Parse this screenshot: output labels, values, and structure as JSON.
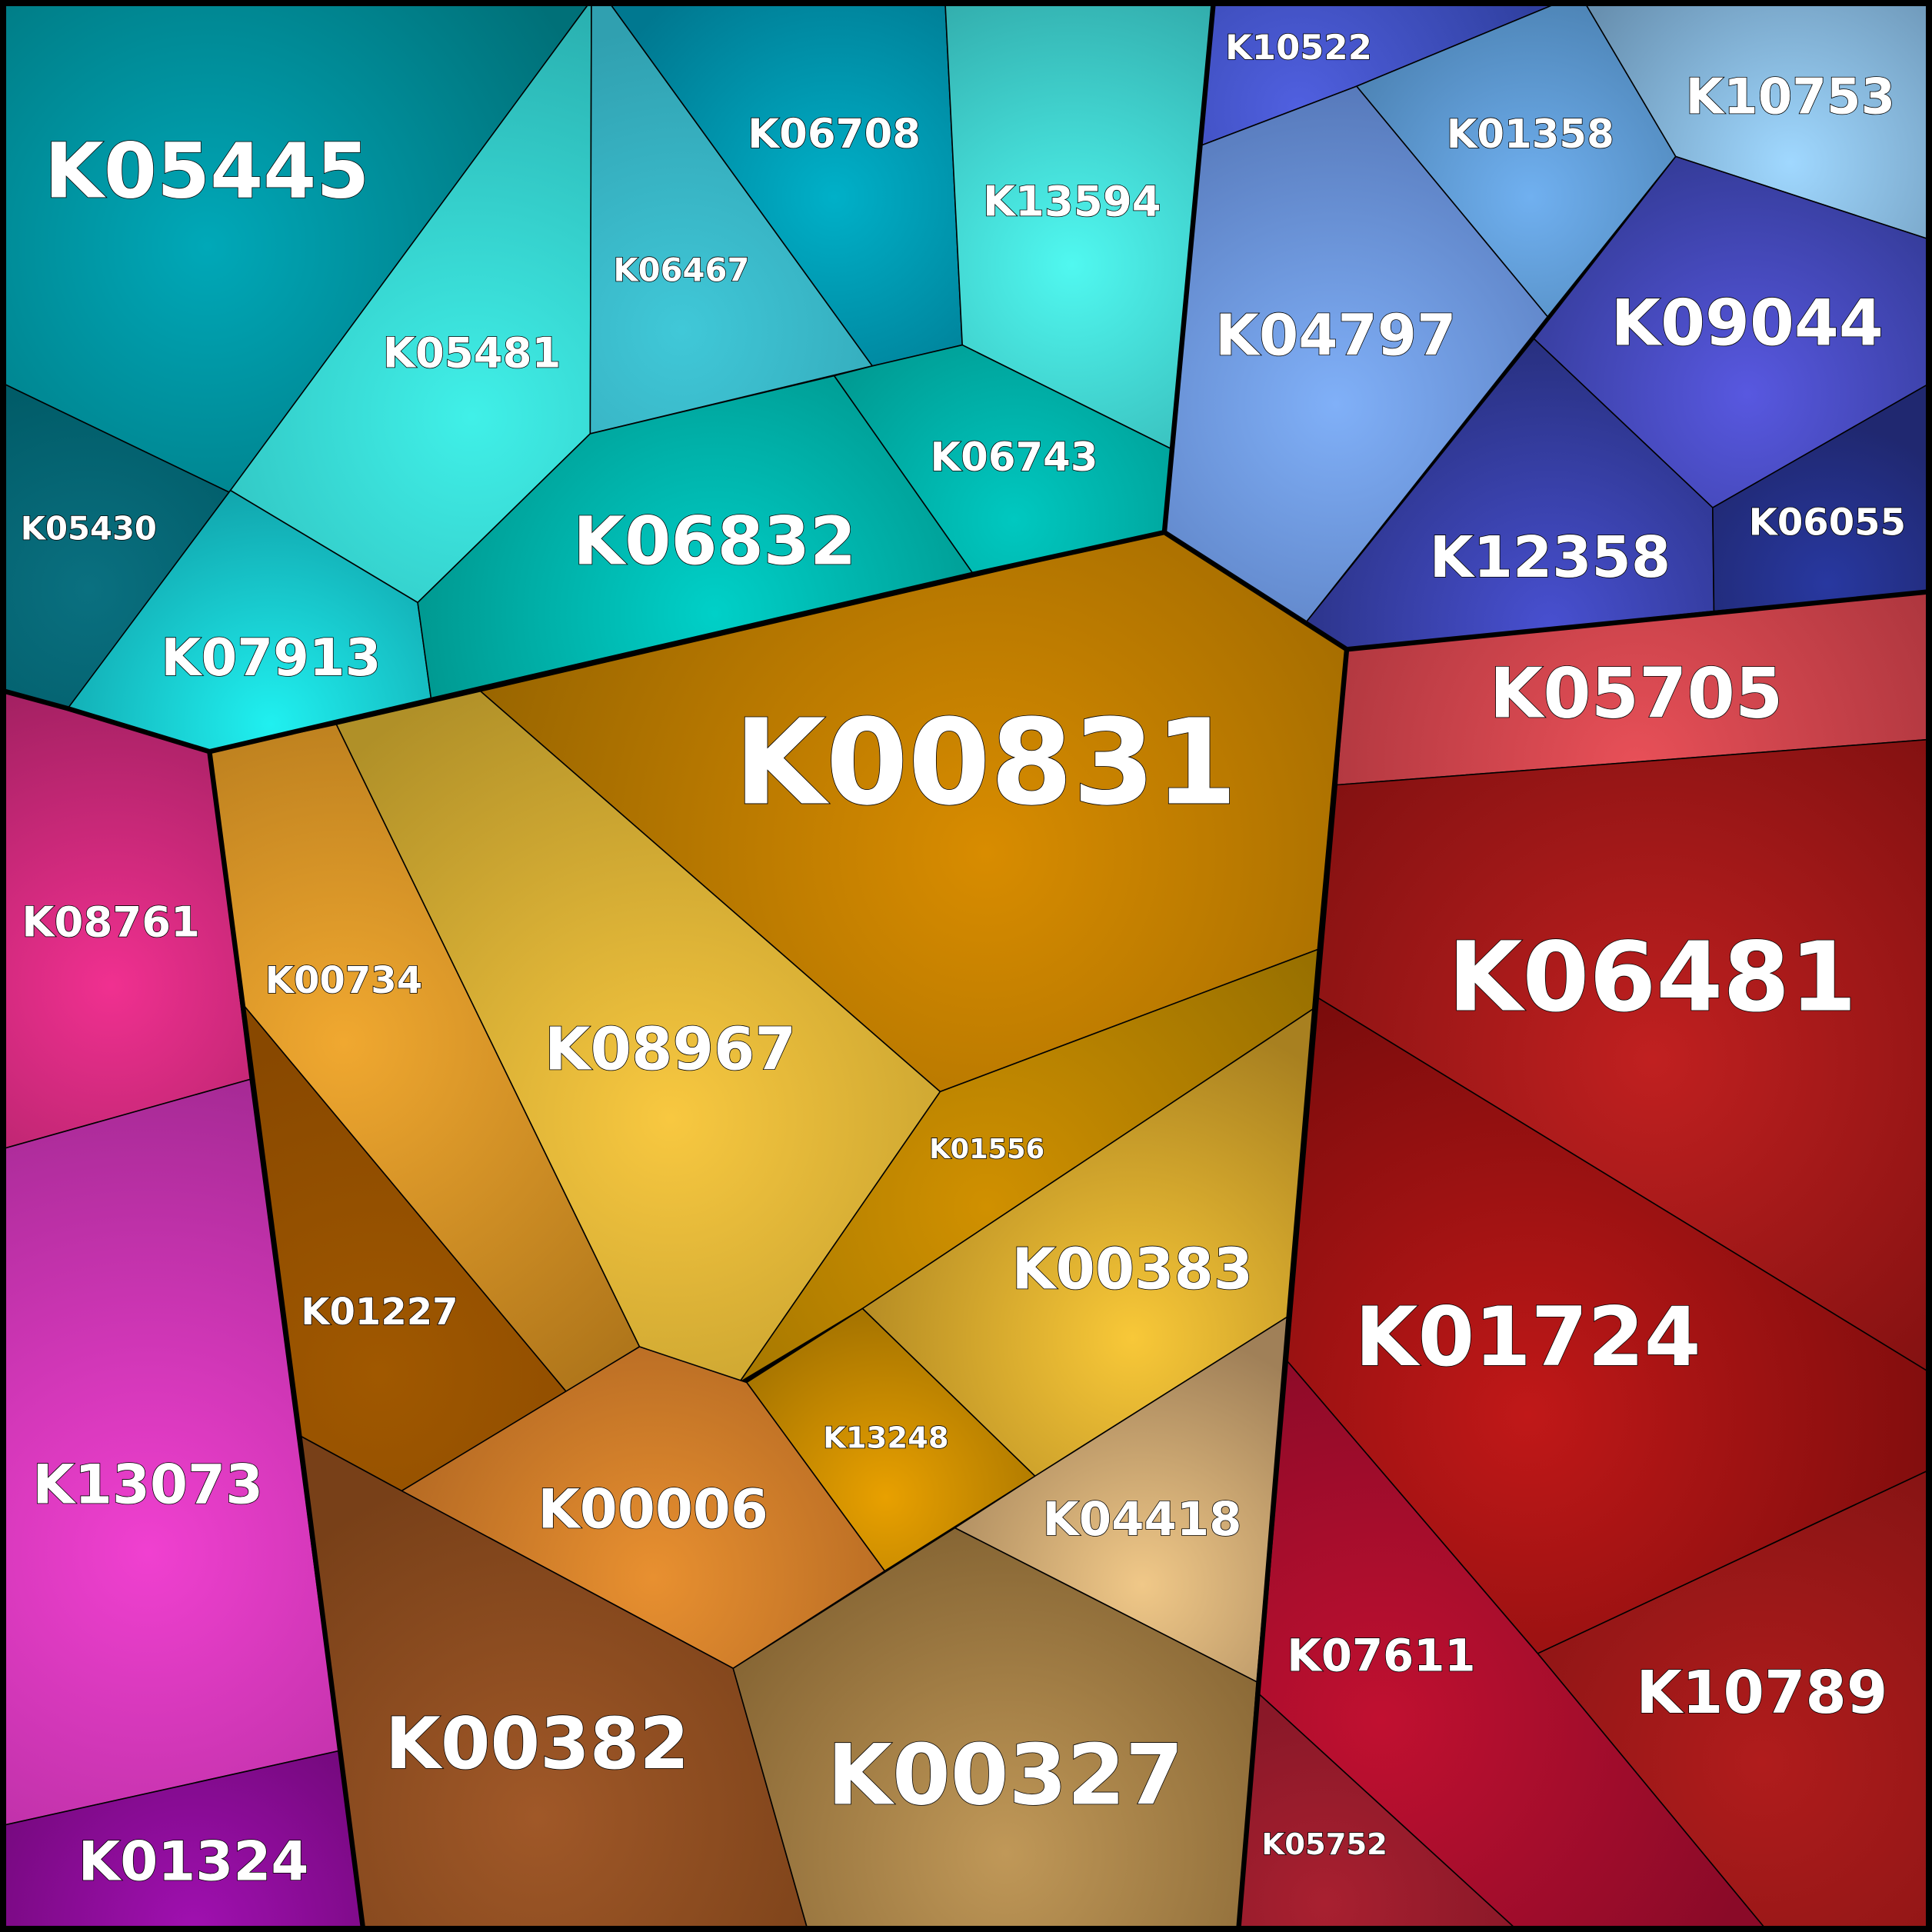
{
  "groups": [
    {
      "name": "teal",
      "color": "#00a0a8",
      "cells": [
        {
          "id": "K05445",
          "center": "#00a8b8",
          "edge": "#007078"
        },
        {
          "id": "K05430",
          "center": "#0a7080",
          "edge": "#005a66"
        },
        {
          "id": "K05481",
          "center": "#40f0e8",
          "edge": "#2ab0b0"
        },
        {
          "id": "K07913",
          "center": "#20f0f0",
          "edge": "#10a0a8"
        },
        {
          "id": "K06467",
          "center": "#40c8d8",
          "edge": "#30a0b0"
        },
        {
          "id": "K06708",
          "center": "#00b0c8",
          "edge": "#007890"
        },
        {
          "id": "K13594",
          "center": "#50f8f0",
          "edge": "#30a8a8"
        },
        {
          "id": "K06743",
          "center": "#00c8c0",
          "edge": "#009890"
        },
        {
          "id": "K06832",
          "center": "#00d0c8",
          "edge": "#008880"
        }
      ]
    },
    {
      "name": "blue",
      "color": "#4050c0",
      "cells": [
        {
          "id": "K10522",
          "center": "#5060e0",
          "edge": "#3040a0"
        },
        {
          "id": "K01358",
          "center": "#70b0f0",
          "edge": "#4a80b0"
        },
        {
          "id": "K10753",
          "center": "#a0d8ff",
          "edge": "#6890b0"
        },
        {
          "id": "K04797",
          "center": "#80b0f8",
          "edge": "#5070b0"
        },
        {
          "id": "K09044",
          "center": "#5858e0",
          "edge": "#303890"
        },
        {
          "id": "K12358",
          "center": "#4850d0",
          "edge": "#283080"
        },
        {
          "id": "K06055",
          "center": "#2838a0",
          "edge": "#202870"
        }
      ]
    },
    {
      "name": "gold",
      "color": "#c08800",
      "cells": [
        {
          "id": "K00831",
          "center": "#d88c00",
          "edge": "#906000"
        },
        {
          "id": "K08967",
          "center": "#f8c840",
          "edge": "#b09028"
        },
        {
          "id": "K00734",
          "center": "#f0a830",
          "edge": "#a87018"
        },
        {
          "id": "K01227",
          "center": "#a05800",
          "edge": "#884800"
        },
        {
          "id": "K01556",
          "center": "#d09000",
          "edge": "#987000"
        },
        {
          "id": "K00383",
          "center": "#f8c838",
          "edge": "#a88020"
        },
        {
          "id": "K13248",
          "center": "#e8a000",
          "edge": "#a07000"
        },
        {
          "id": "K00006",
          "center": "#e89030",
          "edge": "#a86020"
        },
        {
          "id": "K00382",
          "center": "#a05828",
          "edge": "#784018"
        },
        {
          "id": "K04418",
          "center": "#f0c888",
          "edge": "#a08058"
        },
        {
          "id": "K00327",
          "center": "#c09858",
          "edge": "#806030"
        }
      ]
    },
    {
      "name": "magenta",
      "color": "#c02890",
      "cells": [
        {
          "id": "K08761",
          "center": "#f03090",
          "edge": "#a02060"
        },
        {
          "id": "K13073",
          "center": "#f040d0",
          "edge": "#a02890"
        },
        {
          "id": "K01324",
          "center": "#a010b0",
          "edge": "#700878"
        }
      ]
    },
    {
      "name": "red",
      "color": "#a01818",
      "cells": [
        {
          "id": "K05705",
          "center": "#e85058",
          "edge": "#a03038"
        },
        {
          "id": "K06481",
          "center": "#c02020",
          "edge": "#801010"
        },
        {
          "id": "K01724",
          "center": "#c01818",
          "edge": "#7a0c0c"
        },
        {
          "id": "K10789",
          "center": "#b01c1c",
          "edge": "#881414"
        },
        {
          "id": "K07611",
          "center": "#c01030",
          "edge": "#8a0a28"
        },
        {
          "id": "K05752",
          "center": "#a82030",
          "edge": "#8a1828"
        }
      ]
    }
  ]
}
